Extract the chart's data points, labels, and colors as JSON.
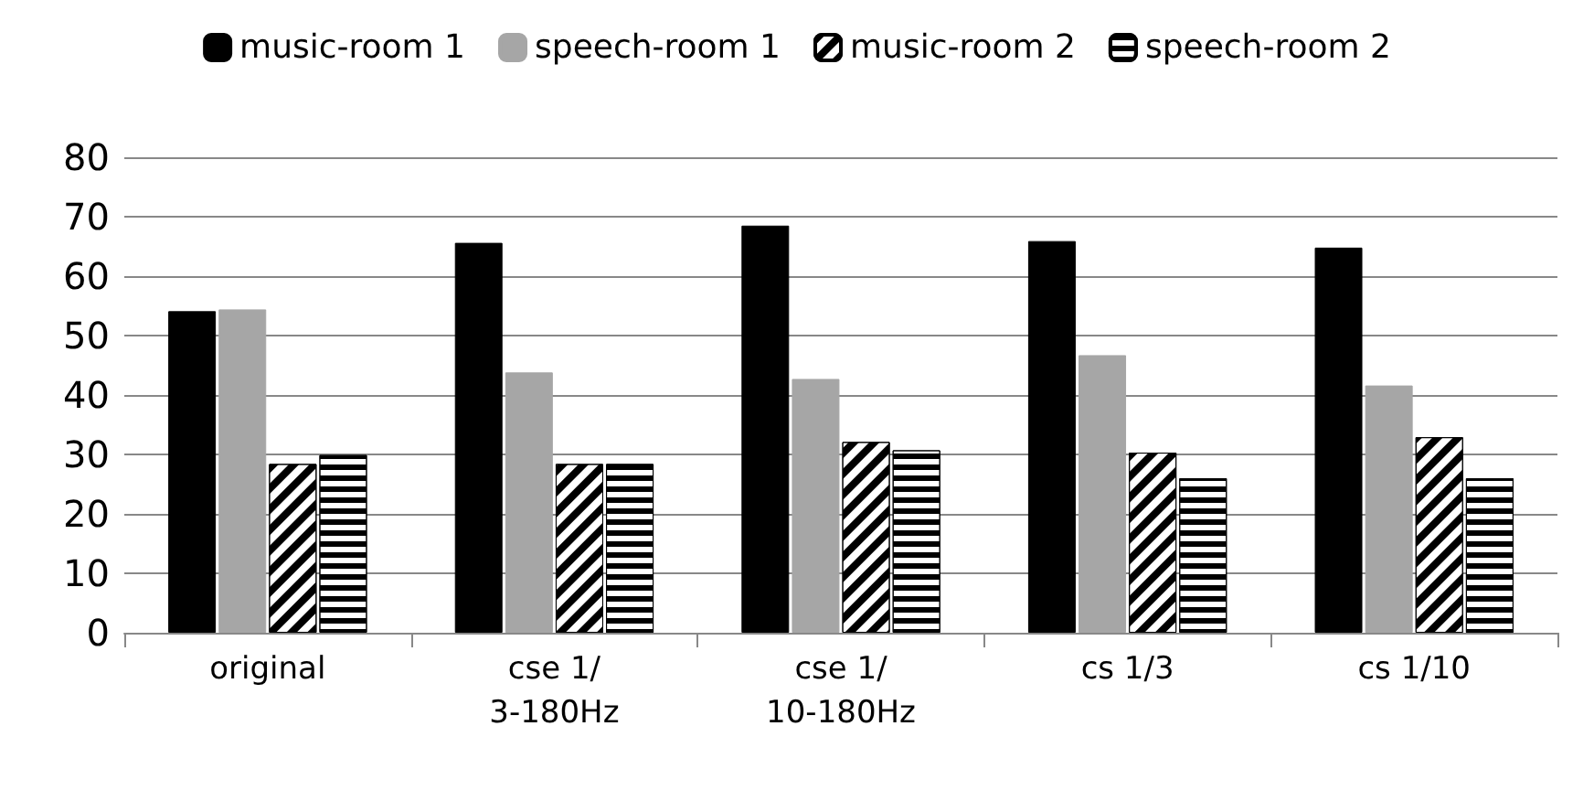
{
  "chart_data": {
    "type": "bar",
    "categories": [
      "original",
      "cse 1/3-180Hz",
      "cse 1/10-180Hz",
      "cs 1/3",
      "cs 1/10"
    ],
    "series": [
      {
        "name": "music-room 1",
        "color": "#000000",
        "values": [
          54.1,
          65.6,
          68.5,
          65.9,
          64.8
        ]
      },
      {
        "name": "speech-room 1",
        "color": "#a6a6a6",
        "values": [
          54.4,
          43.8,
          42.7,
          46.7,
          41.6
        ]
      },
      {
        "name": "music-room 2",
        "color": "#ffffff",
        "values": [
          28.4,
          28.4,
          32.1,
          30.3,
          32.9
        ]
      },
      {
        "name": "speech-room 2",
        "color": "#ffffff",
        "values": [
          29.9,
          28.4,
          30.7,
          26.0,
          26.0
        ]
      }
    ],
    "ylim": [
      0,
      80
    ],
    "yticks": [
      0,
      10,
      20,
      30,
      40,
      50,
      60,
      70,
      80
    ],
    "grid": "y",
    "legend": "top"
  }
}
